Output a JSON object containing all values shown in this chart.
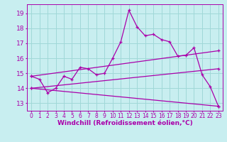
{
  "bg_color": "#c8eef0",
  "line_color": "#aa00aa",
  "grid_color": "#a0d8d8",
  "xlabel": "Windchill (Refroidissement éolien,°C)",
  "xlabel_fontsize": 6.5,
  "xtick_fontsize": 5.5,
  "ytick_fontsize": 6.5,
  "ylim": [
    12.5,
    19.6
  ],
  "xlim": [
    -0.5,
    23.5
  ],
  "yticks": [
    13,
    14,
    15,
    16,
    17,
    18,
    19
  ],
  "xticks": [
    0,
    1,
    2,
    3,
    4,
    5,
    6,
    7,
    8,
    9,
    10,
    11,
    12,
    13,
    14,
    15,
    16,
    17,
    18,
    19,
    20,
    21,
    22,
    23
  ],
  "series": [
    {
      "x": [
        0,
        1,
        2,
        3,
        4,
        5,
        6,
        7,
        8,
        9,
        10,
        11,
        12,
        13,
        14,
        15,
        16,
        17,
        18,
        19,
        20,
        21,
        22,
        23
      ],
      "y": [
        14.8,
        14.6,
        13.7,
        14.0,
        14.8,
        14.6,
        15.4,
        15.3,
        14.9,
        15.0,
        16.0,
        17.1,
        19.2,
        18.1,
        17.5,
        17.6,
        17.25,
        17.1,
        16.15,
        16.2,
        16.7,
        14.9,
        14.1,
        12.8
      ]
    },
    {
      "x": [
        0,
        23
      ],
      "y": [
        14.8,
        16.5
      ]
    },
    {
      "x": [
        0,
        23
      ],
      "y": [
        14.0,
        15.3
      ]
    },
    {
      "x": [
        0,
        23
      ],
      "y": [
        14.0,
        12.8
      ]
    }
  ]
}
